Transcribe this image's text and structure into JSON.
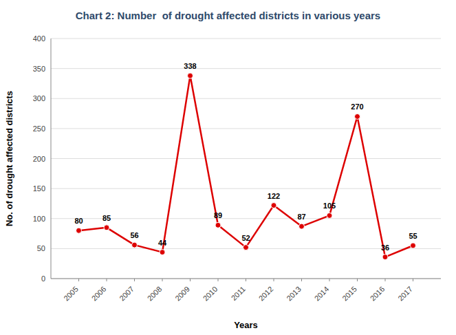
{
  "chart_data": {
    "type": "line",
    "title": "Chart 2: Number  of drought affected districts in various years",
    "xlabel": "Years",
    "ylabel": "No. of drought affected districts",
    "x": [
      2005,
      2006,
      2007,
      2008,
      2009,
      2010,
      2011,
      2012,
      2013,
      2014,
      2015,
      2016,
      2017
    ],
    "values": [
      80,
      85,
      56,
      44,
      338,
      89,
      52,
      122,
      87,
      105,
      270,
      36,
      55
    ],
    "xlim": [
      2004,
      2018
    ],
    "xticks": [
      2005,
      2006,
      2007,
      2008,
      2009,
      2010,
      2011,
      2012,
      2013,
      2014,
      2015,
      2016,
      2017
    ],
    "ylim": [
      0,
      400
    ],
    "yticks": [
      0,
      50,
      100,
      150,
      200,
      250,
      300,
      350,
      400
    ],
    "color": "#dd0000",
    "marker": "circle",
    "grid": true,
    "data_labels": true
  }
}
